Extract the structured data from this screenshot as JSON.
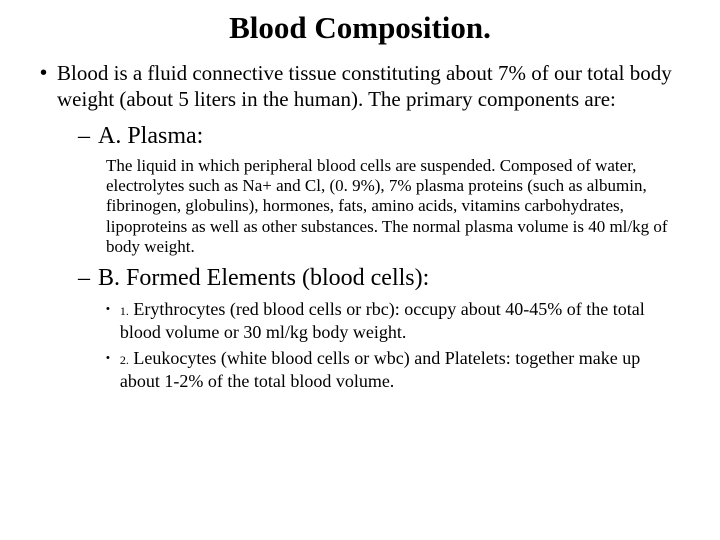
{
  "title": "Blood Composition.",
  "intro": "Blood is a fluid connective tissue constituting about 7% of our total body weight (about 5 liters in the human).  The primary components are:",
  "sectionA": {
    "heading": "A. Plasma:",
    "body": "The liquid in which peripheral blood cells are suspended. Composed of water, electrolytes such as Na+  and Cl, (0. 9%), 7% plasma proteins (such as albumin, fibrinogen, globulins), hormones, fats, amino acids, vitamins carbohydrates, lipoproteins as well as other substances.  The normal plasma volume is 40 ml/kg of body weight."
  },
  "sectionB": {
    "heading": "B. Formed Elements (blood cells):",
    "items": [
      {
        "num": "1.",
        "text": "Erythrocytes (red blood cells or rbc):  occupy about 40-45% of the total blood volume or 30 ml/kg body weight."
      },
      {
        "num": "2.",
        "text": "Leukocytes (white blood cells or wbc) and Platelets:  together make up about 1-2% of the total blood volume."
      }
    ]
  },
  "style": {
    "background_color": "#ffffff",
    "text_color": "#000000",
    "title_fontsize": 31,
    "body_fontsize": 21,
    "sub_heading_fontsize": 24,
    "detail_fontsize": 17,
    "font_family": "Times New Roman"
  }
}
